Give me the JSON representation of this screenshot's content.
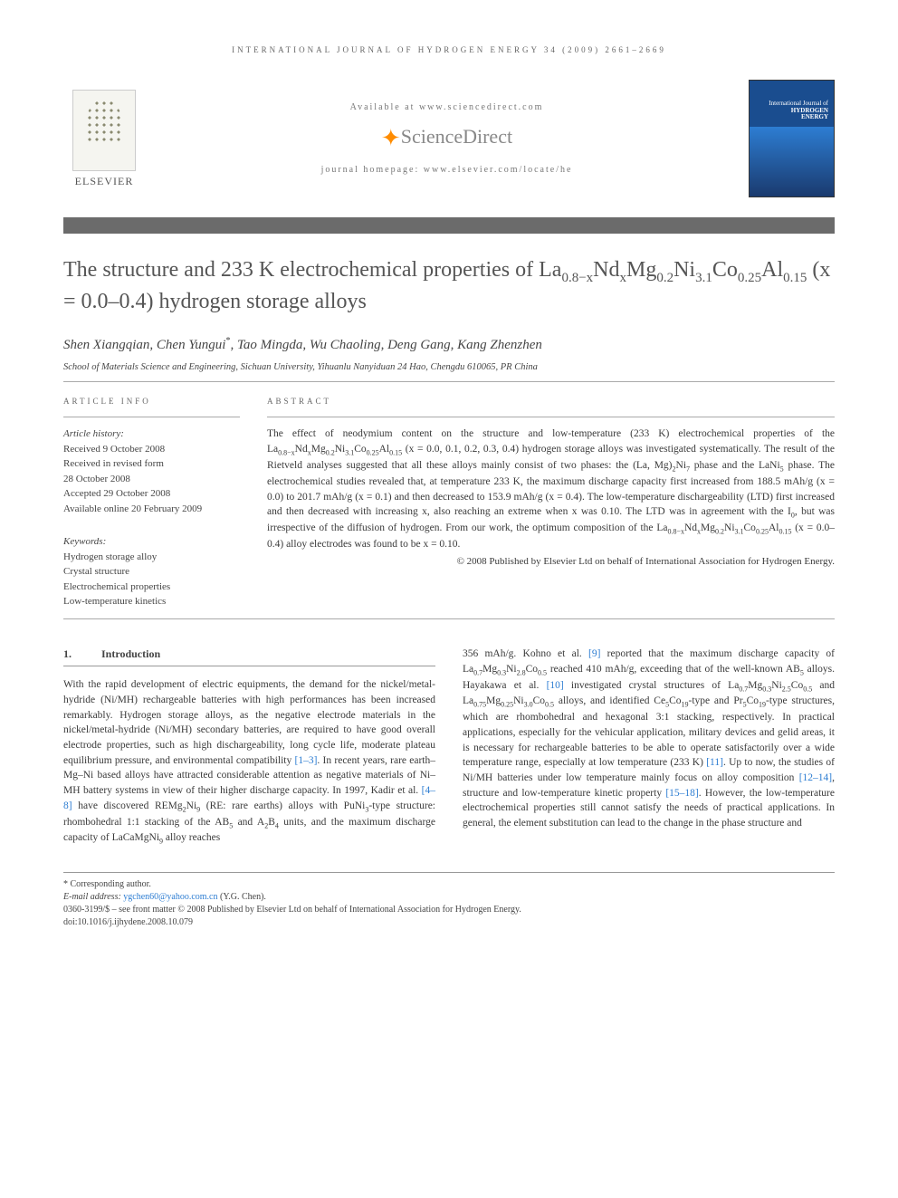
{
  "journal_header": "INTERNATIONAL JOURNAL OF HYDROGEN ENERGY 34 (2009) 2661–2669",
  "publisher": {
    "name": "ELSEVIER",
    "available_at": "Available at www.sciencedirect.com",
    "sd_name": "ScienceDirect",
    "homepage": "journal homepage: www.elsevier.com/locate/he"
  },
  "cover": {
    "line1": "International Journal of",
    "line2": "HYDROGEN",
    "line3": "ENERGY"
  },
  "title_html": "The structure and 233 K electrochemical properties of La<sub>0.8−x</sub>Nd<sub>x</sub>Mg<sub>0.2</sub>Ni<sub>3.1</sub>Co<sub>0.25</sub>Al<sub>0.15</sub> (x = 0.0–0.4) hydrogen storage alloys",
  "authors_html": "Shen Xiangqian, Chen Yungui<sup>*</sup>, Tao Mingda, Wu Chaoling, Deng Gang, Kang Zhenzhen",
  "affiliation": "School of Materials Science and Engineering, Sichuan University, Yihuanlu Nanyiduan 24 Hao, Chengdu 610065, PR China",
  "labels": {
    "article_info": "ARTICLE INFO",
    "abstract": "ABSTRACT",
    "history": "Article history:",
    "keywords": "Keywords:"
  },
  "history": {
    "received": "Received 9 October 2008",
    "revised1": "Received in revised form",
    "revised2": "28 October 2008",
    "accepted": "Accepted 29 October 2008",
    "online": "Available online 20 February 2009"
  },
  "keywords": [
    "Hydrogen storage alloy",
    "Crystal structure",
    "Electrochemical properties",
    "Low-temperature kinetics"
  ],
  "abstract_html": "The effect of neodymium content on the structure and low-temperature (233 K) electrochemical properties of the La<sub>0.8−x</sub>Nd<sub>x</sub>Mg<sub>0.2</sub>Ni<sub>3.1</sub>Co<sub>0.25</sub>Al<sub>0.15</sub> (x = 0.0, 0.1, 0.2, 0.3, 0.4) hydrogen storage alloys was investigated systematically. The result of the Rietveld analyses suggested that all these alloys mainly consist of two phases: the (La, Mg)<sub>2</sub>Ni<sub>7</sub> phase and the LaNi<sub>5</sub> phase. The electrochemical studies revealed that, at temperature 233 K, the maximum discharge capacity first increased from 188.5 mAh/g (x = 0.0) to 201.7 mAh/g (x = 0.1) and then decreased to 153.9 mAh/g (x = 0.4). The low-temperature dischargeability (LTD) first increased and then decreased with increasing x, also reaching an extreme when x was 0.10. The LTD was in agreement with the I<sub>0</sub>, but was irrespective of the diffusion of hydrogen. From our work, the optimum composition of the La<sub>0.8−x</sub>Nd<sub>x</sub>Mg<sub>0.2</sub>Ni<sub>3.1</sub>Co<sub>0.25</sub>Al<sub>0.15</sub> (x = 0.0–0.4) alloy electrodes was found to be x = 0.10.",
  "copyright": "© 2008 Published by Elsevier Ltd on behalf of International Association for Hydrogen Energy.",
  "section1": {
    "num": "1.",
    "title": "Introduction"
  },
  "col1_html": "With the rapid development of electric equipments, the demand for the nickel/metal-hydride (Ni/MH) rechargeable batteries with high performances has been increased remarkably. Hydrogen storage alloys, as the negative electrode materials in the nickel/metal-hydride (Ni/MH) secondary batteries, are required to have good overall electrode properties, such as high dischargeability, long cycle life, moderate plateau equilibrium pressure, and environmental compatibility <span class=\"ref-link\">[1–3]</span>. In recent years, rare earth–Mg–Ni based alloys have attracted considerable attention as negative materials of Ni–MH battery systems in view of their higher discharge capacity. In 1997, Kadir et al. <span class=\"ref-link\">[4–8]</span> have discovered REMg<sub>2</sub>Ni<sub>9</sub> (RE: rare earths) alloys with PuNi<sub>3</sub>-type structure: rhombohedral 1:1 stacking of the AB<sub>5</sub> and A<sub>2</sub>B<sub>4</sub> units, and the maximum discharge capacity of LaCaMgNi<sub>9</sub> alloy reaches",
  "col2_html": "356 mAh/g. Kohno et al. <span class=\"ref-link\">[9]</span> reported that the maximum discharge capacity of La<sub>0.7</sub>Mg<sub>0.3</sub>Ni<sub>2.8</sub>Co<sub>0.5</sub> reached 410 mAh/g, exceeding that of the well-known AB<sub>5</sub> alloys. Hayakawa et al. <span class=\"ref-link\">[10]</span> investigated crystal structures of La<sub>0.7</sub>Mg<sub>0.3</sub>Ni<sub>2.5</sub>Co<sub>0.5</sub> and La<sub>0.75</sub>Mg<sub>0.25</sub>Ni<sub>3.0</sub>Co<sub>0.5</sub> alloys, and identified Ce<sub>5</sub>Co<sub>19</sub>-type and Pr<sub>5</sub>Co<sub>19</sub>-type structures, which are rhombohedral and hexagonal 3:1 stacking, respectively. In practical applications, especially for the vehicular application, military devices and gelid areas, it is necessary for rechargeable batteries to be able to operate satisfactorily over a wide temperature range, especially at low temperature (233 K) <span class=\"ref-link\">[11]</span>. Up to now, the studies of Ni/MH batteries under low temperature mainly focus on alloy composition <span class=\"ref-link\">[12–14]</span>, structure and low-temperature kinetic property <span class=\"ref-link\">[15–18]</span>. However, the low-temperature electrochemical properties still cannot satisfy the needs of practical applications. In general, the element substitution can lead to the change in the phase structure and",
  "footer": {
    "corr_label": "* Corresponding author.",
    "email_label": "E-mail address:",
    "email": "ygchen60@yahoo.com.cn",
    "email_name": "(Y.G. Chen).",
    "issn_line": "0360-3199/$ – see front matter © 2008 Published by Elsevier Ltd on behalf of International Association for Hydrogen Energy.",
    "doi": "doi:10.1016/j.ijhydene.2008.10.079"
  },
  "colors": {
    "text": "#3a3a3a",
    "link": "#2d7dd2",
    "gray_bar": "#6b6b6b",
    "orange": "#ff8c00",
    "cover_blue": "#1a4d8f"
  },
  "typography": {
    "title_fontsize": 24,
    "body_fontsize": 11.5,
    "abstract_fontsize": 11.5,
    "info_fontsize": 11,
    "header_letterspacing": 3
  }
}
